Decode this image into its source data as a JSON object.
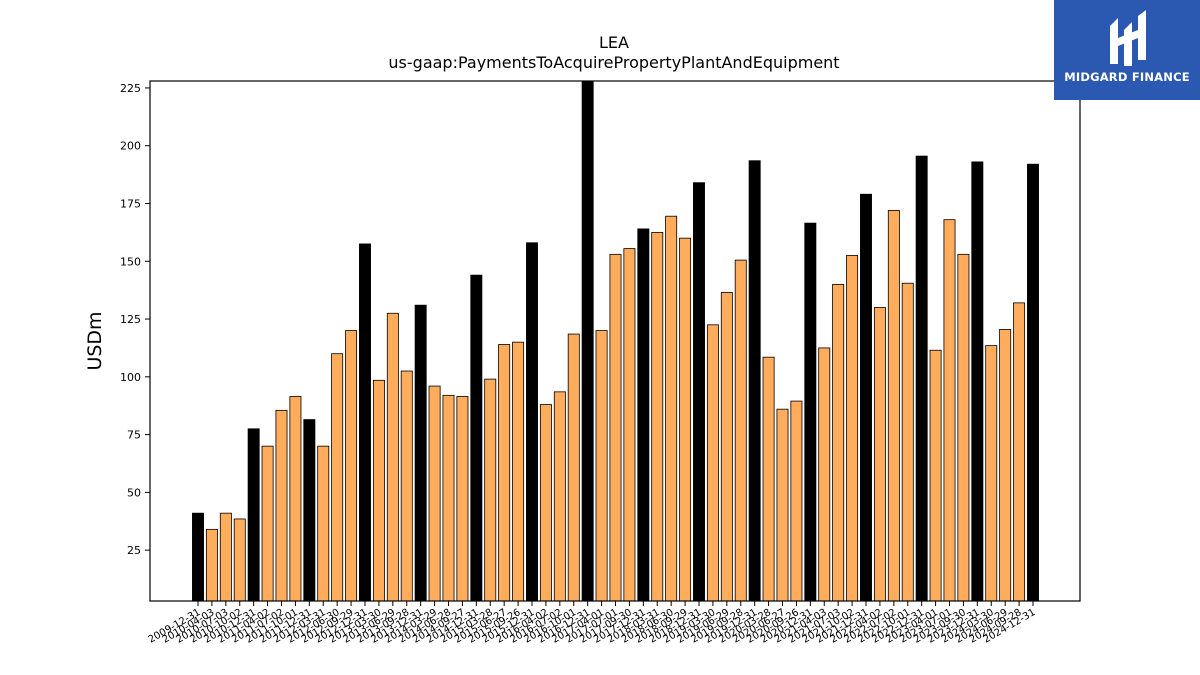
{
  "chart_data": {
    "type": "bar",
    "title": "LEA",
    "subtitle": "us-gaap:PaymentsToAcquirePropertyPlantAndEquipment",
    "ylabel": "USDm",
    "xlabel": "",
    "ylim": [
      3,
      228
    ],
    "yticks": [
      25,
      50,
      75,
      100,
      125,
      150,
      175,
      200,
      225
    ],
    "grid": false,
    "colors": {
      "annual": "#000000",
      "quarterly": "#ffad5c",
      "edge": "#000000"
    },
    "categories": [
      "2009-12-31",
      "2010-04-03",
      "2010-07-03",
      "2010-10-02",
      "2010-12-31",
      "2011-04-02",
      "2011-07-02",
      "2011-10-01",
      "2011-12-31",
      "2012-03-31",
      "2012-06-30",
      "2012-09-29",
      "2012-12-31",
      "2013-03-30",
      "2013-06-29",
      "2013-09-28",
      "2013-12-31",
      "2014-03-29",
      "2014-06-28",
      "2014-09-27",
      "2014-12-31",
      "2015-03-28",
      "2015-06-27",
      "2015-09-26",
      "2015-12-31",
      "2016-04-02",
      "2016-07-02",
      "2016-10-01",
      "2016-12-31",
      "2017-04-01",
      "2017-07-01",
      "2017-09-30",
      "2017-12-31",
      "2018-03-31",
      "2018-06-30",
      "2018-09-29",
      "2018-12-31",
      "2019-03-30",
      "2019-06-29",
      "2019-09-28",
      "2019-12-31",
      "2020-03-28",
      "2020-06-27",
      "2020-09-26",
      "2020-12-31",
      "2021-04-03",
      "2021-07-03",
      "2021-10-02",
      "2021-12-31",
      "2022-04-02",
      "2022-07-02",
      "2022-10-01",
      "2022-12-31",
      "2023-04-01",
      "2023-07-01",
      "2023-09-30",
      "2023-12-31",
      "2024-03-30",
      "2024-06-29",
      "2024-09-28",
      "2024-12-31"
    ],
    "values": [
      41,
      34,
      41,
      38.5,
      77.5,
      70,
      85.5,
      91.5,
      81.5,
      70,
      110,
      120,
      157.5,
      98.5,
      127.5,
      102.5,
      131,
      96,
      92,
      91.5,
      144,
      99,
      114,
      115,
      158,
      88,
      93.5,
      118.5,
      228,
      120,
      153,
      155.5,
      164,
      162.5,
      169.5,
      160,
      184,
      122.5,
      136.5,
      150.5,
      193.5,
      108.5,
      86,
      89.5,
      166.5,
      112.5,
      140,
      152.5,
      179,
      130,
      172,
      140.5,
      195.5,
      111.5,
      168,
      153,
      193,
      113.5,
      120.5,
      132,
      192
    ],
    "annual": [
      true,
      false,
      false,
      false,
      true,
      false,
      false,
      false,
      true,
      false,
      false,
      false,
      true,
      false,
      false,
      false,
      true,
      false,
      false,
      false,
      true,
      false,
      false,
      false,
      true,
      false,
      false,
      false,
      true,
      false,
      false,
      false,
      true,
      false,
      false,
      false,
      true,
      false,
      false,
      false,
      true,
      false,
      false,
      false,
      true,
      false,
      false,
      false,
      true,
      false,
      false,
      false,
      true,
      false,
      false,
      false,
      true,
      false,
      false,
      false,
      true
    ]
  },
  "logo": {
    "text": "MIDGARD FINANCE"
  }
}
